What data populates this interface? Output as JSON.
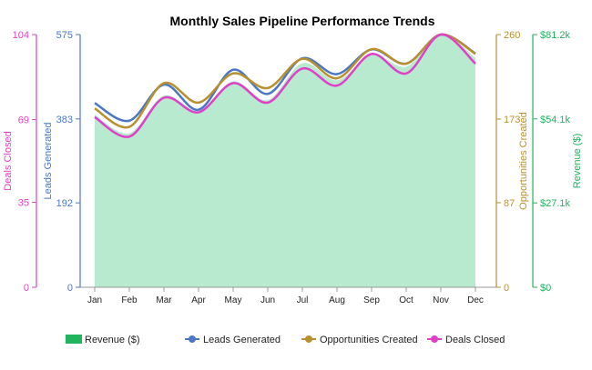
{
  "chart_data": {
    "type": "line",
    "title": "Monthly Sales Pipeline Performance Trends",
    "categories": [
      "Jan",
      "Feb",
      "Mar",
      "Apr",
      "May",
      "Jun",
      "Jul",
      "Aug",
      "Sep",
      "Oct",
      "Nov",
      "Dec"
    ],
    "grid": false,
    "legend_position": "bottom",
    "axes": {
      "deals": {
        "label": "Deals Closed",
        "side": "left-outer",
        "range": [
          0,
          104
        ],
        "ticks": [
          "0",
          "35",
          "69",
          "104"
        ],
        "tick_values": [
          0,
          35,
          69,
          104
        ],
        "color": "#e040c8"
      },
      "leads": {
        "label": "Leads Generated",
        "side": "left-inner",
        "range": [
          0,
          575
        ],
        "ticks": [
          "0",
          "192",
          "383",
          "575"
        ],
        "tick_values": [
          0,
          192,
          383,
          575
        ],
        "color": "#4a78c2"
      },
      "opps": {
        "label": "Opportunities Created",
        "side": "right-inner",
        "range": [
          0,
          260
        ],
        "ticks": [
          "0",
          "87",
          "173",
          "260"
        ],
        "tick_values": [
          0,
          87,
          173,
          260
        ],
        "color": "#b8902e"
      },
      "revenue": {
        "label": "Revenue ($)",
        "side": "right-outer",
        "range": [
          0,
          81.2
        ],
        "ticks": [
          "$0",
          "$27.1k",
          "$54.1k",
          "$81.2k"
        ],
        "tick_values": [
          0,
          27.1,
          54.1,
          81.2
        ],
        "unit": "$k",
        "color": "#22b35e"
      }
    },
    "series": [
      {
        "name": "Revenue ($)",
        "type": "area",
        "axis": "revenue",
        "color": "#22b35e",
        "fill": "#b8ead0",
        "values": [
          55.5,
          49.5,
          61.6,
          56.8,
          66.2,
          60.2,
          72.0,
          66.5,
          74.8,
          70.9,
          81.2,
          73.8
        ]
      },
      {
        "name": "Leads Generated",
        "type": "line",
        "axis": "leads",
        "color": "#4a78c2",
        "values": [
          419,
          379,
          461,
          404,
          495,
          440,
          521,
          485,
          541,
          509,
          575,
          532
        ]
      },
      {
        "name": "Opportunities Created",
        "type": "line",
        "axis": "opps",
        "color": "#b8902e",
        "values": [
          184,
          165,
          210,
          190,
          220,
          205,
          235,
          215,
          245,
          230,
          260,
          240
        ]
      },
      {
        "name": "Deals Closed",
        "type": "line",
        "axis": "deals",
        "color": "#e040c8",
        "values": [
          70,
          62,
          78,
          72,
          84,
          76,
          90,
          83,
          96,
          88,
          104,
          92
        ]
      }
    ]
  }
}
